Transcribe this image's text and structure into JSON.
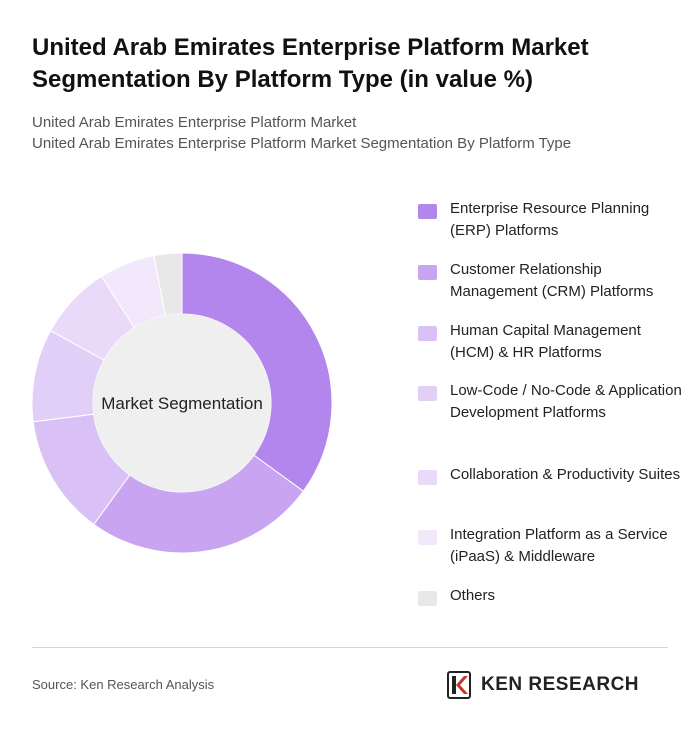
{
  "header": {
    "title": "United Arab Emirates Enterprise Platform Market Segmentation By Platform Type (in value %)",
    "subtitle_1": "United Arab Emirates Enterprise Platform Market",
    "subtitle_2": "United Arab Emirates Enterprise Platform Market Segmentation By Platform Type"
  },
  "chart_data": {
    "type": "pie",
    "variant": "donut",
    "center_label": "Market Segmentation",
    "categories": [
      "Enterprise Resource Planning (ERP) Platforms",
      "Customer Relationship Management (CRM) Platforms",
      "Human Capital Management (HCM) & HR Platforms",
      "Low-Code / No-Code & Application Development Platforms",
      "Collaboration & Productivity Suites",
      "Integration Platform as a Service (iPaaS) & Middleware",
      "Others"
    ],
    "values": [
      35,
      25,
      13,
      10,
      8,
      6,
      3
    ],
    "colors": [
      "#b286ec",
      "#c8a4f1",
      "#d9c0f5",
      "#e2cff7",
      "#ead9f9",
      "#f1e8fb",
      "#e8e8e8"
    ],
    "legend_position": "right"
  },
  "footer": {
    "source": "Source: Ken Research Analysis",
    "brand": "KEN RESEARCH"
  }
}
